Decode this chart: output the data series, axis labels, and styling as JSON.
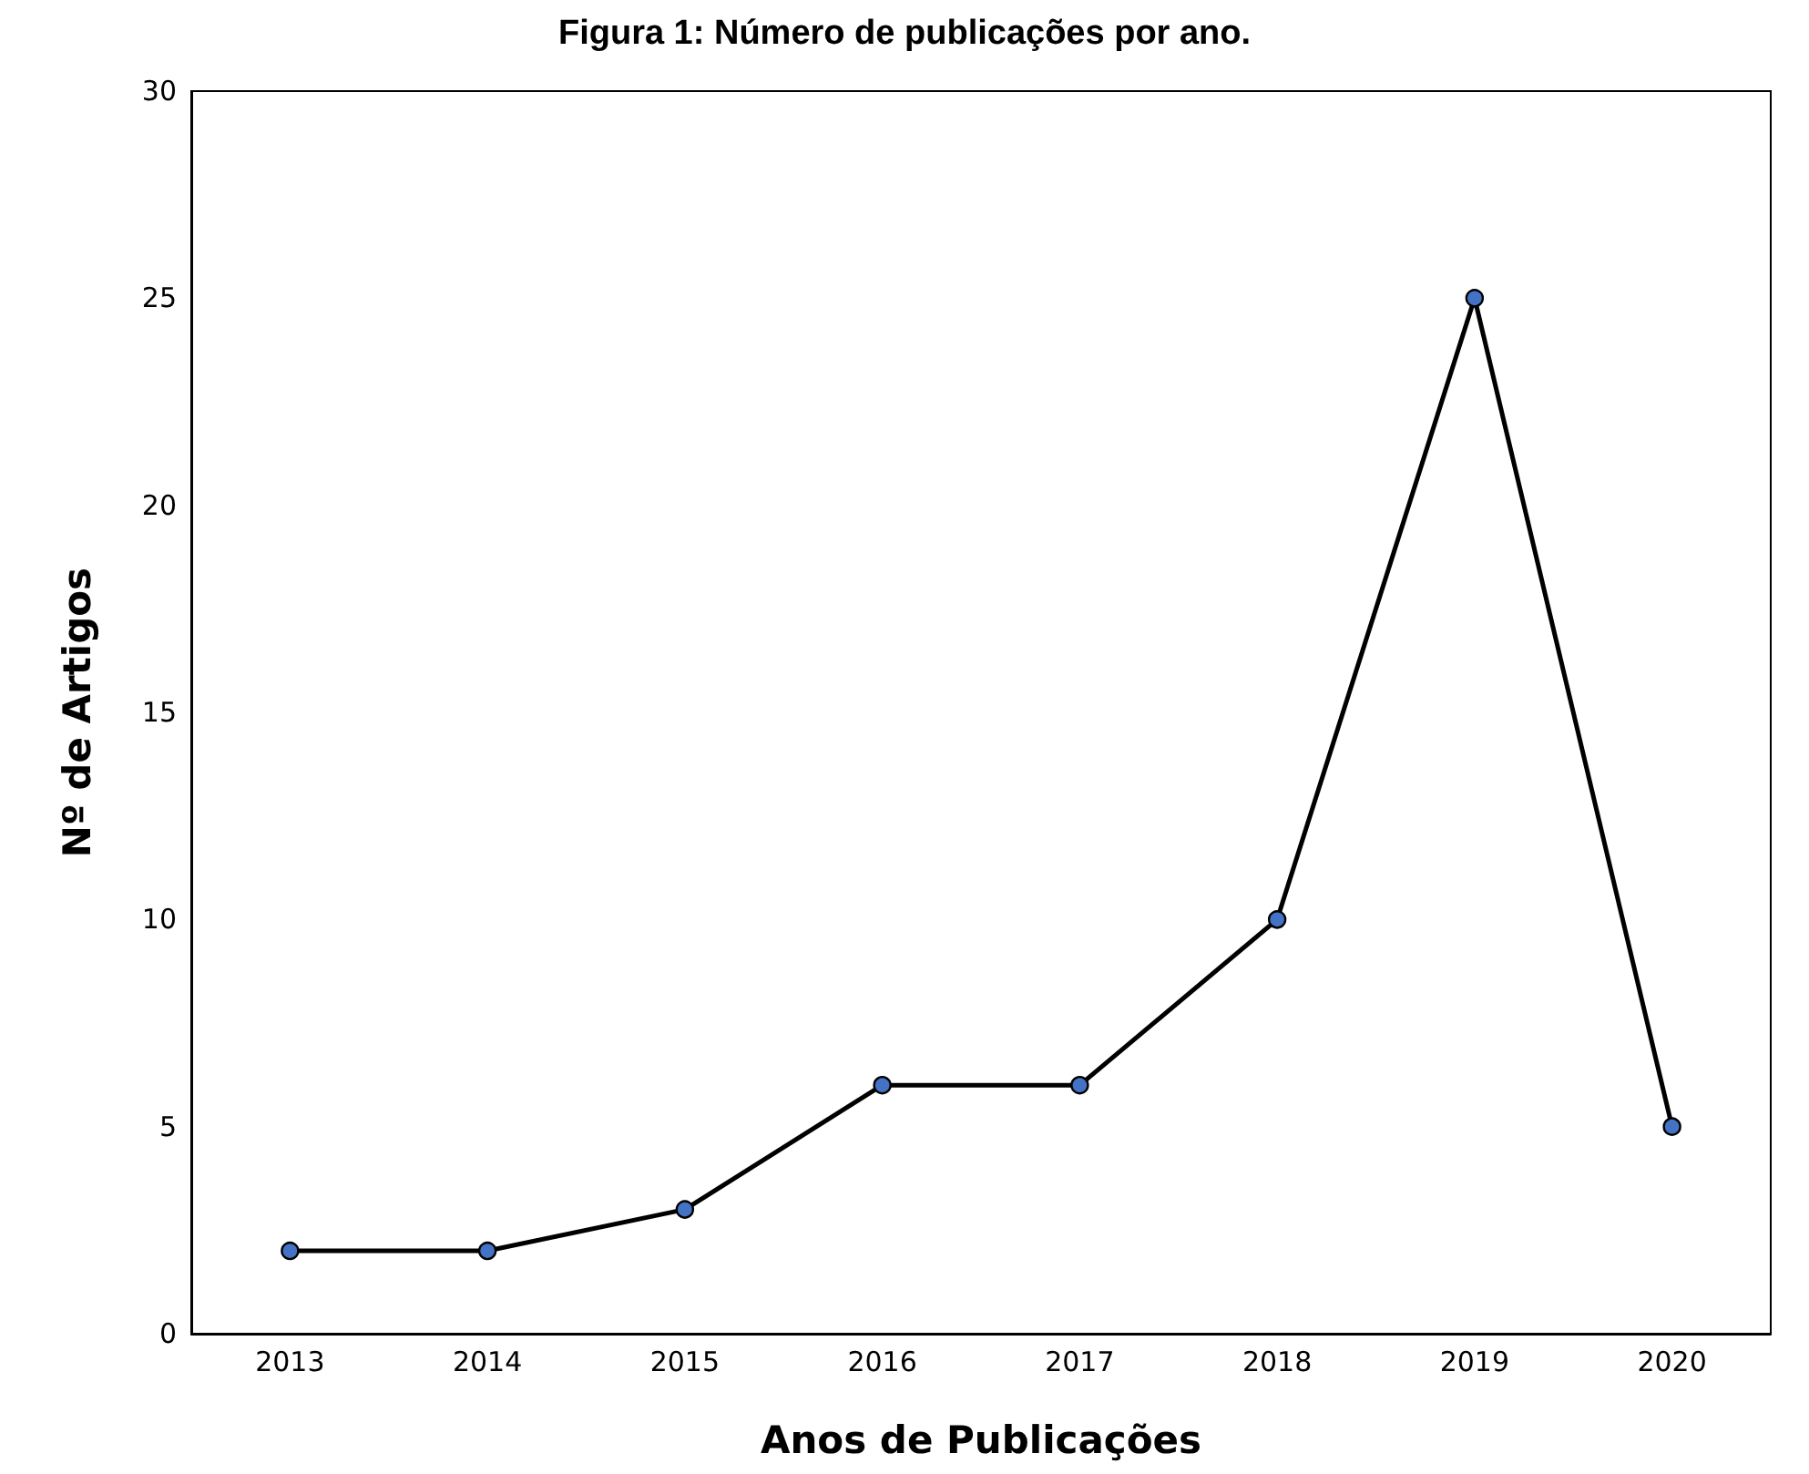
{
  "chart_data": {
    "type": "line",
    "title": "Figura 1: Número de publicações por ano.",
    "xlabel": "Anos de Publicações",
    "ylabel": "Nº de Artigos",
    "categories": [
      "2013",
      "2014",
      "2015",
      "2016",
      "2017",
      "2018",
      "2019",
      "2020"
    ],
    "series": [
      {
        "color": "#000000",
        "values": [
          2,
          2,
          3,
          6,
          6,
          10,
          25,
          5
        ]
      }
    ],
    "ylim": [
      0,
      30
    ],
    "yticks": [
      0,
      5,
      10,
      15,
      20,
      25,
      30
    ],
    "grid": false,
    "marker": "circle",
    "line_style": "solid"
  }
}
